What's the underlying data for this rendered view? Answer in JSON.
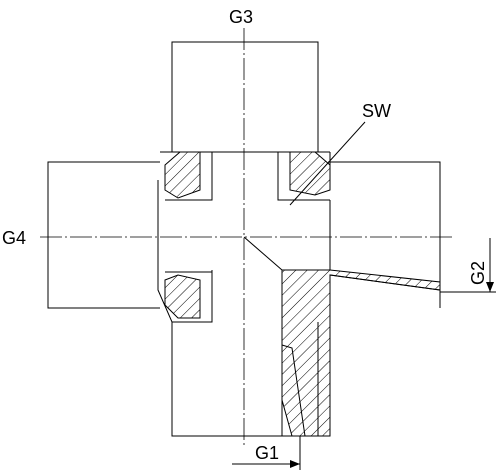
{
  "labels": {
    "g1": "G1",
    "g2": "G2",
    "g3": "G3",
    "g4": "G4",
    "sw": "SW"
  }
}
